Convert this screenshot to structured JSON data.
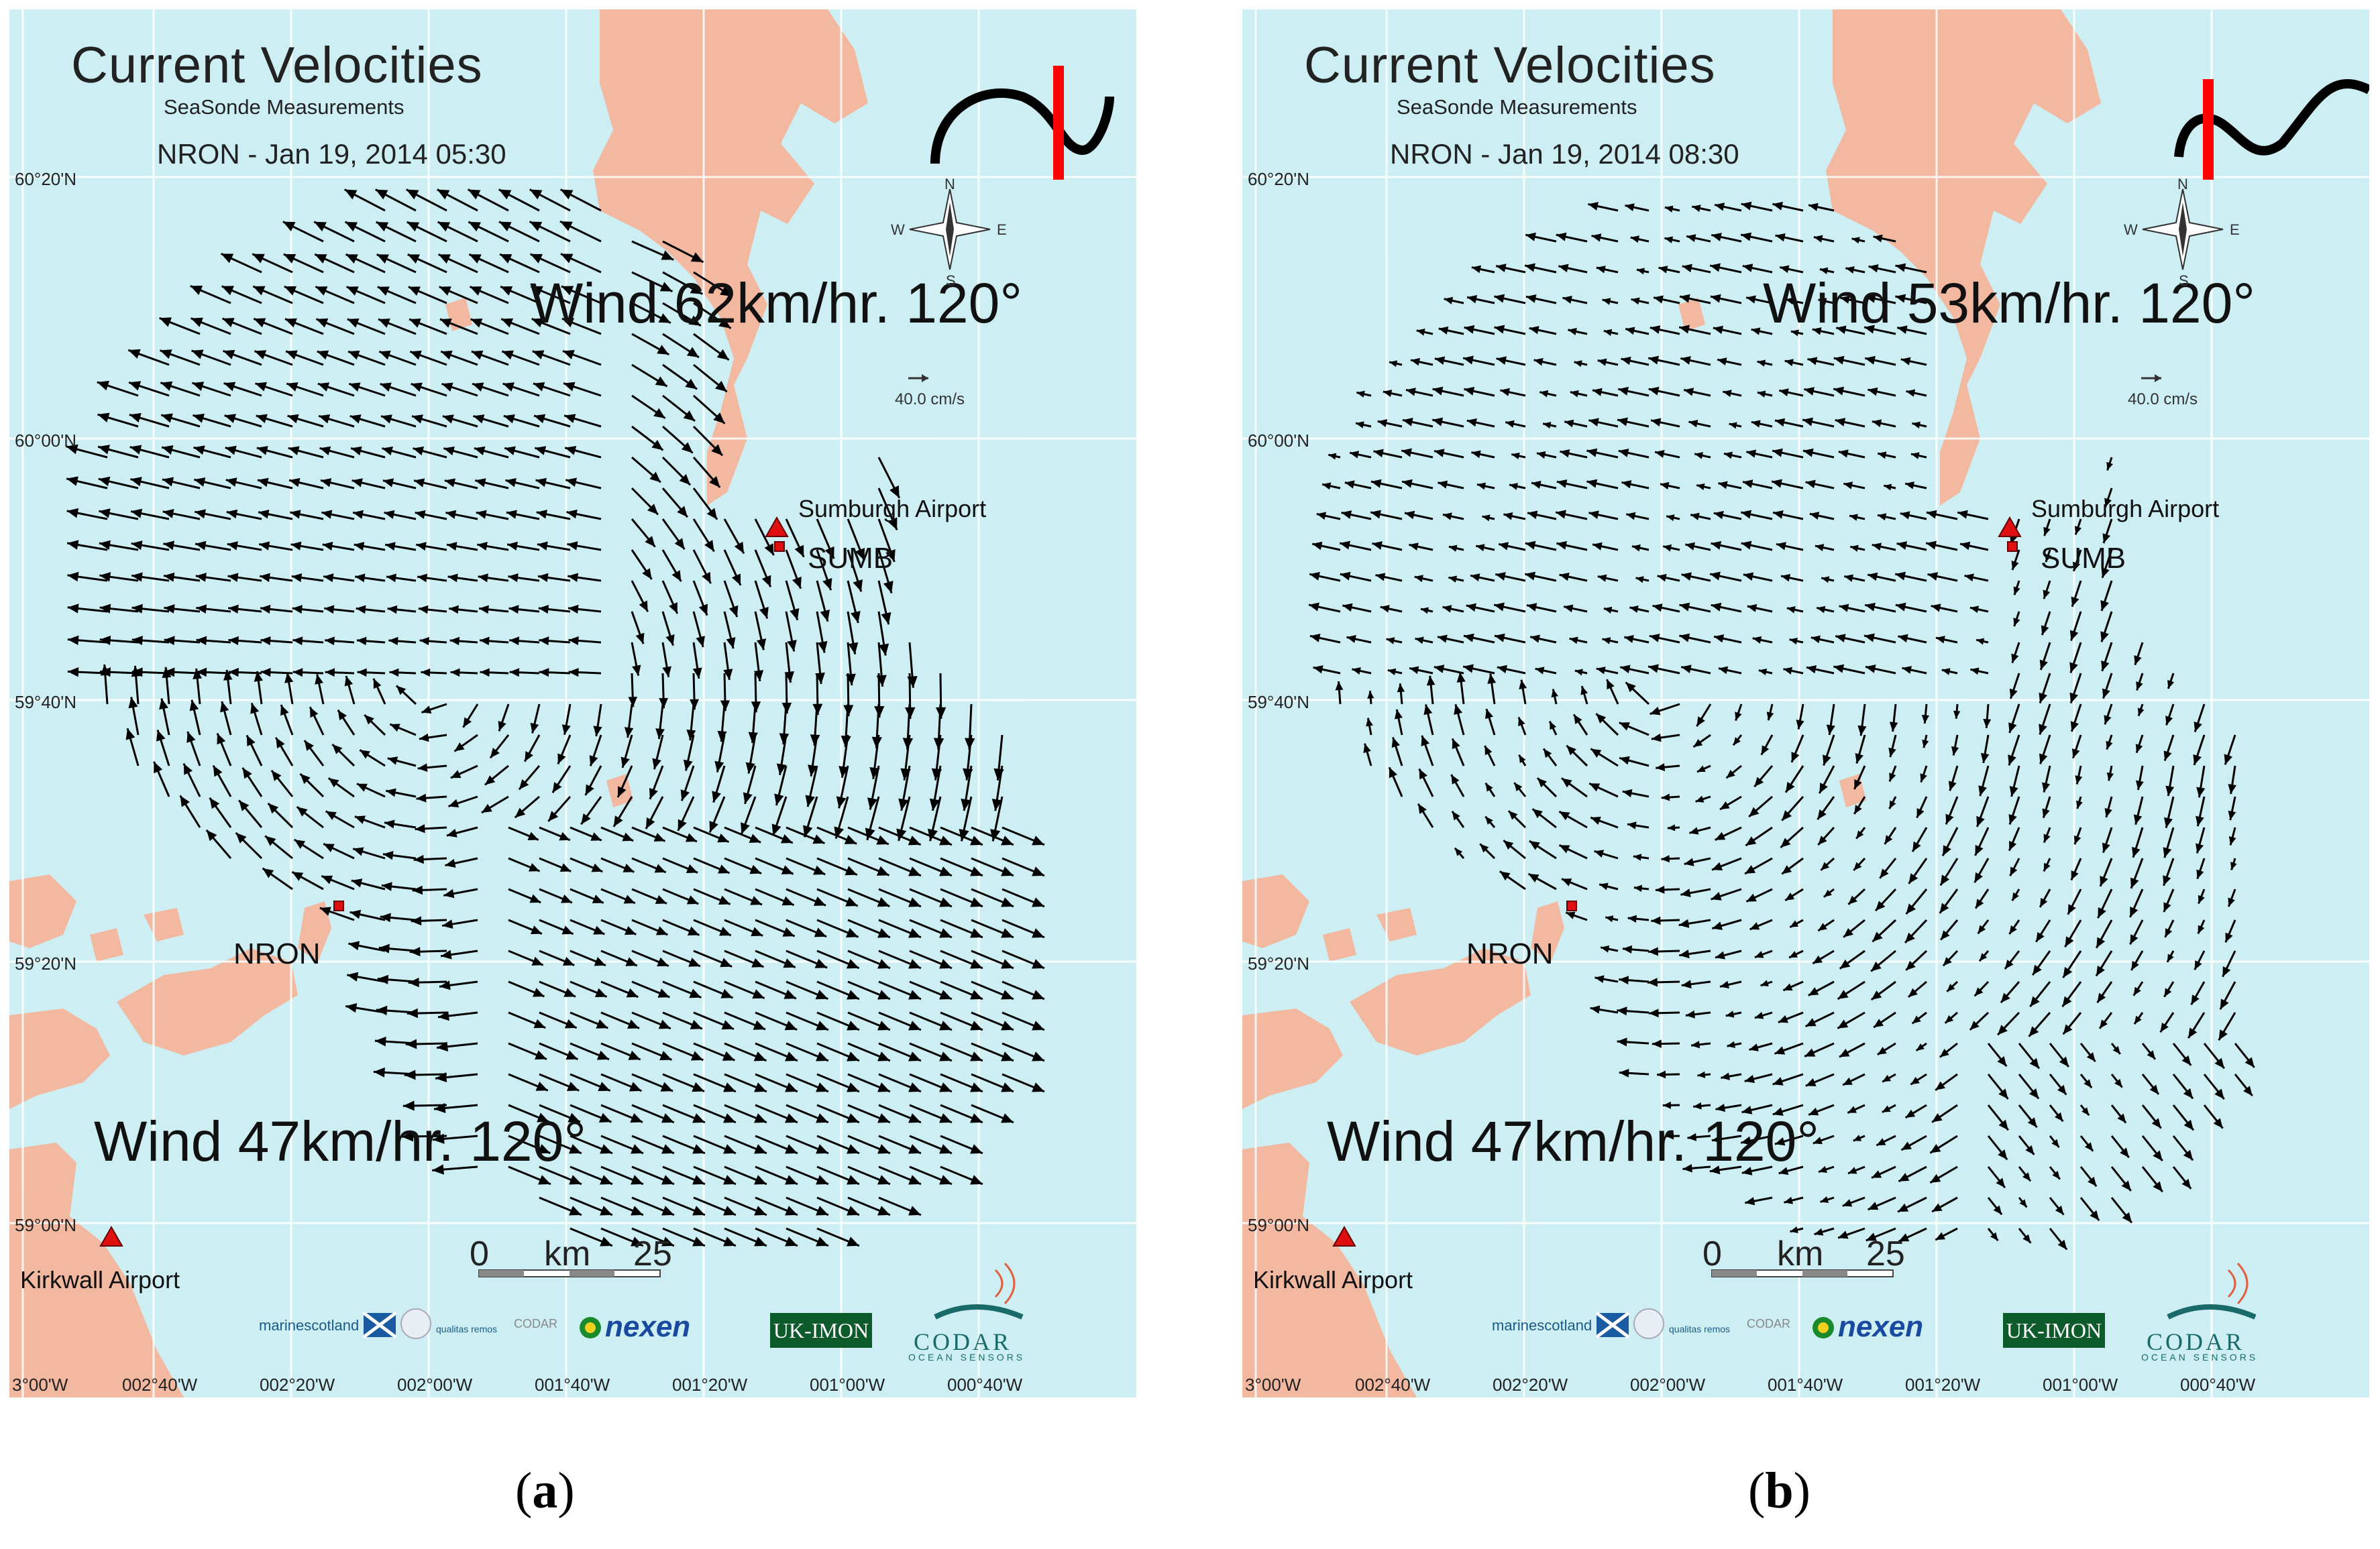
{
  "panels": [
    {
      "id": "a",
      "title": "Current Velocities",
      "subtitle": "SeaSonde Measurements",
      "timestamp": "NRON - Jan 19, 2014 05:30",
      "wind_top": "Wind 62km/hr. 120°",
      "wind_bottom": "Wind 47km/hr. 120°",
      "caption": "a"
    },
    {
      "id": "b",
      "title": "Current Velocities",
      "subtitle": "SeaSonde Measurements",
      "timestamp": "NRON - Jan 19, 2014 08:30",
      "wind_top": "Wind 53km/hr. 120°",
      "wind_bottom": "Wind 47km/hr. 120°",
      "caption": "b"
    }
  ],
  "map": {
    "lat_labels": [
      "60°20'N",
      "60°00'N",
      "59°40'N",
      "59°20'N",
      "59°00'N"
    ],
    "lon_labels": [
      "3°00'W",
      "002°40'W",
      "002°20'W",
      "002°00'W",
      "001°40'W",
      "001°20'W",
      "001°00'W",
      "000°40'W"
    ],
    "sites": [
      "SUMB",
      "NRON"
    ],
    "airports": [
      "Sumburgh Airport",
      "Kirkwall Airport"
    ],
    "scale": {
      "start": "0",
      "unit": "km",
      "end": "25"
    },
    "reference_vector": "40.0 cm/s",
    "compass": {
      "n": "N",
      "s": "S",
      "e": "E",
      "w": "W"
    },
    "logos": [
      "marinescotland",
      "qualitas remos",
      "CODAR",
      "nexen",
      "UK-IMON",
      "CODAR",
      "OCEAN SENSORS"
    ]
  },
  "colors": {
    "sea": "#cdeff4",
    "land": "#f2b8a0",
    "grid": "#ffffff",
    "vector": "#000000",
    "marker": "#e01010",
    "tide_bar": "#ff0000"
  }
}
